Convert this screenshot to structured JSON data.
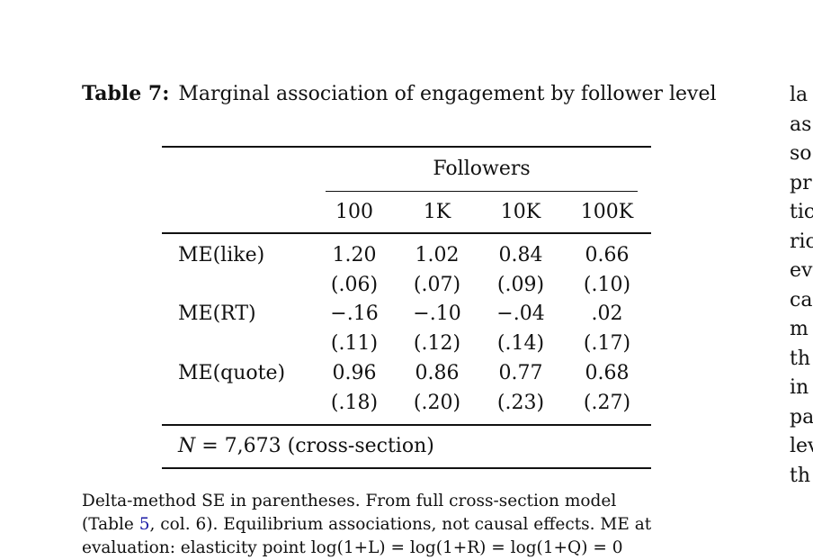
{
  "caption": {
    "label": "Table 7:",
    "text": "Marginal association of engagement by follower level"
  },
  "table": {
    "group_header": "Followers",
    "columns": [
      "100",
      "1K",
      "10K",
      "100K"
    ],
    "rows": [
      {
        "label": "ME(like)",
        "estimates": [
          "1.20",
          "1.02",
          "0.84",
          "0.66"
        ],
        "se": [
          "(.06)",
          "(.07)",
          "(.09)",
          "(.10)"
        ]
      },
      {
        "label": "ME(RT)",
        "estimates": [
          "−.16",
          "−.10",
          "−.04",
          ".02"
        ],
        "se": [
          "(.11)",
          "(.12)",
          "(.14)",
          "(.17)"
        ]
      },
      {
        "label": "ME(quote)",
        "estimates": [
          "0.96",
          "0.86",
          "0.77",
          "0.68"
        ],
        "se": [
          "(.18)",
          "(.20)",
          "(.23)",
          "(.27)"
        ]
      }
    ],
    "footer": {
      "n_symbol": "N",
      "n_text": " = 7,673 (cross-section)"
    }
  },
  "note": {
    "line1": "Delta-method SE in parentheses. From full cross-section model",
    "line2_prefix": "(Table ",
    "line2_link": "5",
    "line2_suffix": ", col. 6). Equilibrium associations, not causal effects. ME at",
    "line3": "evaluation: elasticity point log(1+L) = log(1+R) = log(1+Q) = 0"
  },
  "side_text": [
    "la",
    "as",
    "so",
    "pr",
    "tic",
    "ric",
    "ev",
    "ca",
    "m",
    "th",
    "in",
    "pa",
    "lev",
    "th"
  ]
}
